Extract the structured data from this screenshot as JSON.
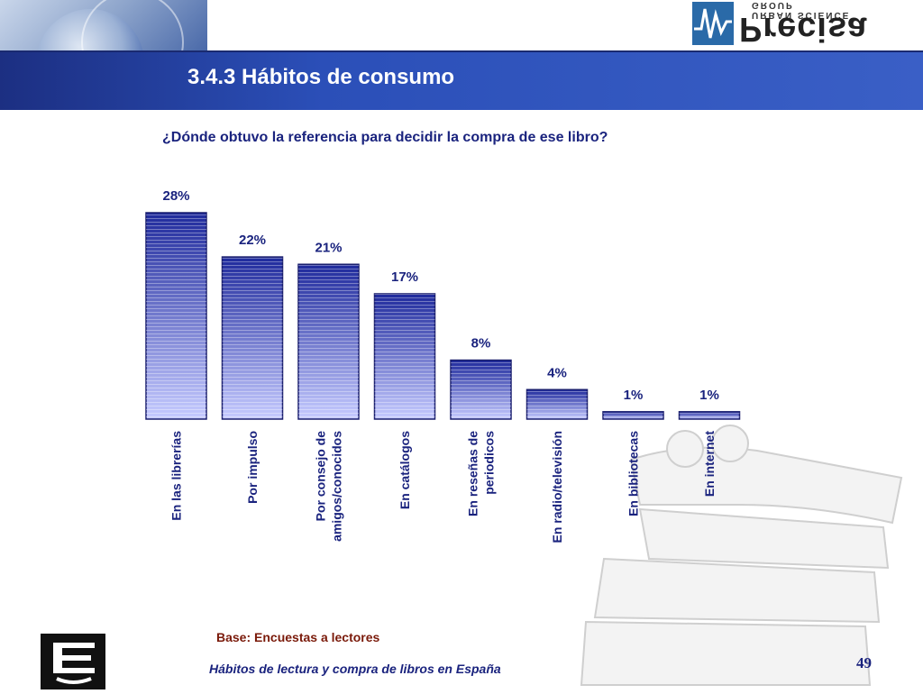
{
  "header": {
    "title": "3.4.3 Hábitos de consumo",
    "logo_text": "Precisa",
    "logo_subtext": "URBAN SCIENCE GROUP"
  },
  "footer": {
    "base": "Base:  Encuestas a lectores",
    "report_title": "Hábitos de lectura y compra de libros en España",
    "page_number": "49"
  },
  "colors": {
    "header_bar": "#2b4fb8",
    "bar_top": "#1f2a9c",
    "bar_bottom": "#c6cbff",
    "title_text": "#1a237e"
  },
  "chart_data": {
    "type": "bar",
    "title": "¿Dónde obtuvo la referencia para decidir la compra de ese libro?",
    "categories": [
      "En las librerías",
      "Por impulso",
      "Por consejo de amigos/conocidos",
      "En catálogos",
      "En reseñas de periodicos",
      "En radio/televisión",
      "En bibliotecas",
      "En internet"
    ],
    "category_lines": [
      [
        "En las librerías"
      ],
      [
        "Por impulso"
      ],
      [
        "Por consejo de",
        "amigos/conocidos"
      ],
      [
        "En catálogos"
      ],
      [
        "En reseñas de",
        "periodicos"
      ],
      [
        "En radio/televisión"
      ],
      [
        "En bibliotecas"
      ],
      [
        "En internet"
      ]
    ],
    "values": [
      28,
      22,
      21,
      17,
      8,
      4,
      1,
      1
    ],
    "labels": [
      "28%",
      "22%",
      "21%",
      "17%",
      "8%",
      "4%",
      "1%",
      "1%"
    ],
    "unit": "%",
    "ylim": [
      0,
      28
    ],
    "grid": false,
    "legend": "none"
  }
}
